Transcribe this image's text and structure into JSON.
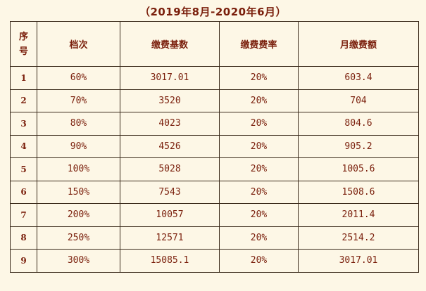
{
  "title": "（2019年8月-2020年6月）",
  "headers": {
    "seq_line1": "序",
    "seq_line2": "号",
    "grade": "档次",
    "base": "缴费基数",
    "rate": "缴费费率",
    "monthly": "月缴费额"
  },
  "rows": [
    {
      "idx": "1",
      "grade": "60%",
      "base": "3017.01",
      "rate": "20%",
      "monthly": "603.4"
    },
    {
      "idx": "2",
      "grade": "70%",
      "base": "3520",
      "rate": "20%",
      "monthly": "704"
    },
    {
      "idx": "3",
      "grade": "80%",
      "base": "4023",
      "rate": "20%",
      "monthly": "804.6"
    },
    {
      "idx": "4",
      "grade": "90%",
      "base": "4526",
      "rate": "20%",
      "monthly": "905.2"
    },
    {
      "idx": "5",
      "grade": "100%",
      "base": "5028",
      "rate": "20%",
      "monthly": "1005.6"
    },
    {
      "idx": "6",
      "grade": "150%",
      "base": "7543",
      "rate": "20%",
      "monthly": "1508.6"
    },
    {
      "idx": "7",
      "grade": "200%",
      "base": "10057",
      "rate": "20%",
      "monthly": "2011.4"
    },
    {
      "idx": "8",
      "grade": "250%",
      "base": "12571",
      "rate": "20%",
      "monthly": "2514.2"
    },
    {
      "idx": "9",
      "grade": "300%",
      "base": "15085.1",
      "rate": "20%",
      "monthly": "3017.01"
    }
  ],
  "colors": {
    "text": "#7a1f0c",
    "background": "#fdf7e6",
    "border": "#3a2a1a"
  }
}
